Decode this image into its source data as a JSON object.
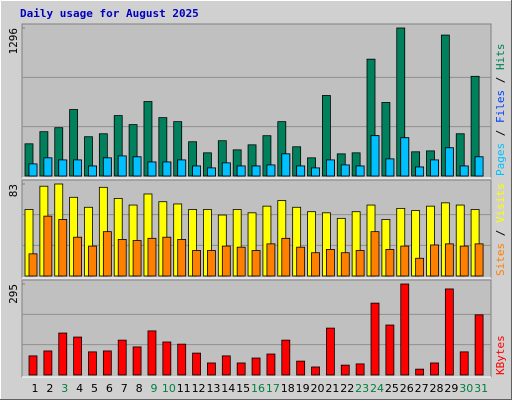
{
  "chart_data": [
    {
      "type": "bar",
      "title": "Daily usage for August 2025",
      "ylim": [
        0,
        1296
      ],
      "yticks": [
        1296
      ],
      "legend_separator": " / ",
      "series": [
        {
          "name": "Hits",
          "color": "#00805c",
          "values": [
            282,
            388,
            423,
            582,
            344,
            370,
            529,
            450,
            652,
            511,
            476,
            300,
            203,
            309,
            229,
            273,
            353,
            476,
            256,
            159,
            705,
            194,
            203,
            1023,
            644,
            1296,
            212,
            220,
            1234,
            370,
            873
          ]
        },
        {
          "name": "Files",
          "color": "#0040ff",
          "values": [
            106,
            159,
            141,
            141,
            88,
            159,
            176,
            168,
            123,
            123,
            141,
            88,
            71,
            115,
            88,
            88,
            97,
            194,
            88,
            71,
            141,
            97,
            88,
            353,
            150,
            335,
            79,
            141,
            247,
            88,
            168
          ]
        },
        {
          "name": "Pages",
          "color": "#00c0ff",
          "values": [
            106,
            159,
            141,
            141,
            88,
            159,
            176,
            168,
            123,
            123,
            141,
            88,
            71,
            115,
            88,
            88,
            97,
            194,
            88,
            71,
            141,
            97,
            88,
            353,
            150,
            335,
            79,
            141,
            247,
            88,
            168
          ]
        }
      ]
    },
    {
      "type": "bar",
      "ylim": [
        0,
        83
      ],
      "yticks": [
        83
      ],
      "legend_separator": " / ",
      "series": [
        {
          "name": "Visits",
          "color": "#ffff00",
          "values": [
            60,
            81,
            83,
            71,
            62,
            80,
            70,
            64,
            74,
            67,
            65,
            60,
            60,
            55,
            60,
            57,
            63,
            68,
            62,
            58,
            57,
            52,
            58,
            64,
            51,
            61,
            59,
            63,
            66,
            64,
            60
          ]
        },
        {
          "name": "Sites",
          "color": "#ff8000",
          "values": [
            20,
            54,
            51,
            35,
            27,
            40,
            33,
            32,
            34,
            35,
            33,
            23,
            23,
            27,
            26,
            23,
            29,
            34,
            26,
            21,
            24,
            21,
            23,
            40,
            24,
            27,
            16,
            28,
            29,
            27,
            29
          ]
        }
      ]
    },
    {
      "type": "bar",
      "ylim": [
        0,
        295
      ],
      "yticks": [
        295
      ],
      "categories": [
        "1",
        "2",
        "3",
        "4",
        "5",
        "6",
        "7",
        "8",
        "9",
        "10",
        "11",
        "12",
        "13",
        "14",
        "15",
        "16",
        "17",
        "18",
        "19",
        "20",
        "21",
        "22",
        "23",
        "24",
        "25",
        "26",
        "27",
        "28",
        "29",
        "30",
        "31"
      ],
      "weekend": [
        false,
        false,
        true,
        false,
        false,
        false,
        false,
        false,
        true,
        true,
        false,
        false,
        false,
        false,
        false,
        true,
        true,
        false,
        false,
        false,
        false,
        false,
        true,
        true,
        false,
        false,
        false,
        false,
        false,
        true,
        true
      ],
      "weekend_color": "#008040",
      "series": [
        {
          "name": "KBytes",
          "color": "#ff0000",
          "values": [
            62,
            78,
            136,
            123,
            75,
            78,
            113,
            91,
            143,
            107,
            100,
            71,
            39,
            62,
            39,
            55,
            68,
            113,
            45,
            26,
            152,
            32,
            36,
            233,
            162,
            295,
            19,
            39,
            279,
            75,
            195
          ]
        }
      ]
    }
  ]
}
